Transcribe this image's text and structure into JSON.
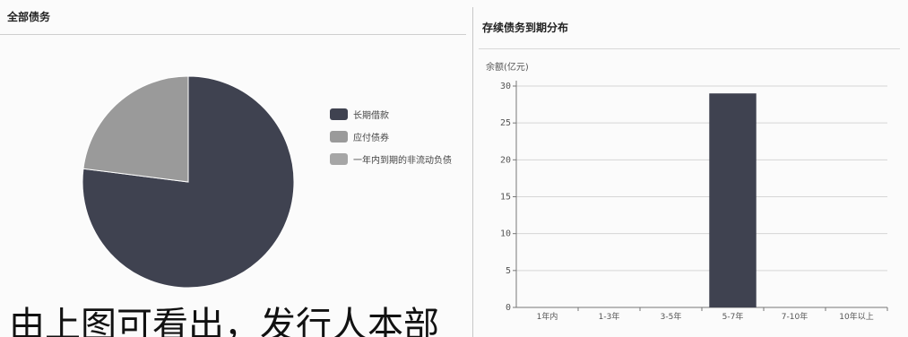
{
  "left_panel": {
    "title": "全部债务"
  },
  "right_panel": {
    "title": "存续债务到期分布"
  },
  "overlay_text": "由上图可看出，发行人本部",
  "colors": {
    "dark": "#3f4250",
    "mid": "#9a9a9a",
    "mid2": "#a6a6a6",
    "grid": "#d6d6d6",
    "axis": "#777777"
  },
  "chart_data": [
    {
      "type": "pie",
      "title": "全部债务",
      "legend_position": "right",
      "slices": [
        {
          "name": "长期借款",
          "value": 77,
          "color": "#3f4250"
        },
        {
          "name": "应付债券",
          "value": 23,
          "color": "#9a9a9a"
        },
        {
          "name": "一年内到期的非流动负债",
          "value": 0,
          "color": "#a6a6a6"
        }
      ]
    },
    {
      "type": "bar",
      "title": "存续债务到期分布",
      "ylabel": "余额(亿元)",
      "xlabel": "",
      "categories": [
        "1年内",
        "1-3年",
        "3-5年",
        "5-7年",
        "7-10年",
        "10年以上"
      ],
      "values": [
        0,
        0,
        0,
        29,
        0,
        0
      ],
      "ylim": [
        0,
        30
      ],
      "yticks": [
        0,
        5,
        10,
        15,
        20,
        25,
        30
      ],
      "grid": true,
      "bar_color": "#3f4250"
    }
  ]
}
